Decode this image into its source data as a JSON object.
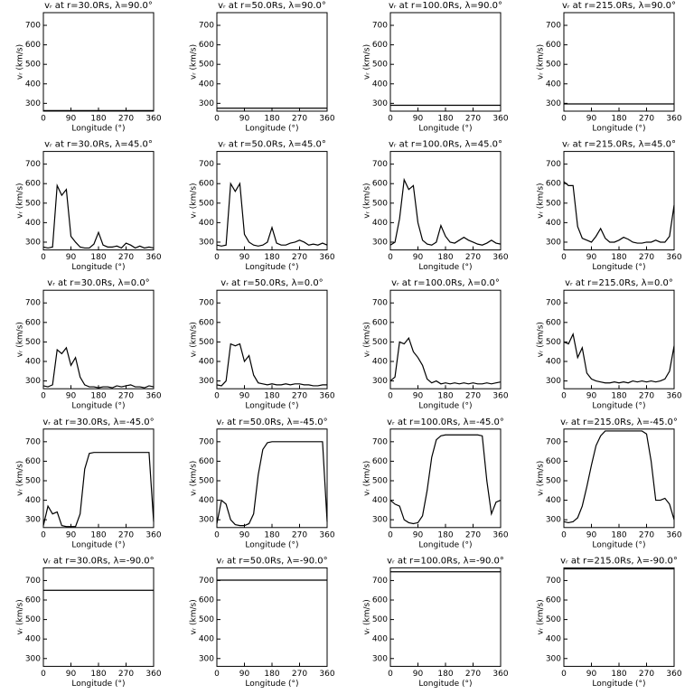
{
  "chart_data": [
    {
      "type": "line",
      "title": "vᵣ at r=30.0Rs, λ=90.0°",
      "xlabel": "Longitude (°)",
      "ylabel": "vᵣ (km/s)",
      "color": "#000000",
      "xlim": [
        0,
        360
      ],
      "ylim": [
        260,
        765
      ],
      "xticks": [
        0,
        90,
        180,
        270,
        360
      ],
      "yticks": [
        300,
        400,
        500,
        600,
        700
      ],
      "x": [
        0,
        360
      ],
      "values": [
        263,
        263
      ]
    },
    {
      "type": "line",
      "title": "vᵣ at r=50.0Rs, λ=90.0°",
      "xlabel": "Longitude (°)",
      "ylabel": "vᵣ (km/s)",
      "color": "#000000",
      "xlim": [
        0,
        360
      ],
      "ylim": [
        260,
        765
      ],
      "xticks": [
        0,
        90,
        180,
        270,
        360
      ],
      "yticks": [
        300,
        400,
        500,
        600,
        700
      ],
      "x": [
        0,
        360
      ],
      "values": [
        275,
        275
      ]
    },
    {
      "type": "line",
      "title": "vᵣ at r=100.0Rs, λ=90.0°",
      "xlabel": "Longitude (°)",
      "ylabel": "vᵣ (km/s)",
      "color": "#000000",
      "xlim": [
        0,
        360
      ],
      "ylim": [
        260,
        765
      ],
      "xticks": [
        0,
        90,
        180,
        270,
        360
      ],
      "yticks": [
        300,
        400,
        500,
        600,
        700
      ],
      "x": [
        0,
        360
      ],
      "values": [
        290,
        290
      ]
    },
    {
      "type": "line",
      "title": "vᵣ at r=215.0Rs, λ=90.0°",
      "xlabel": "Longitude (°)",
      "ylabel": "vᵣ (km/s)",
      "color": "#000000",
      "xlim": [
        0,
        360
      ],
      "ylim": [
        260,
        765
      ],
      "xticks": [
        0,
        90,
        180,
        270,
        360
      ],
      "yticks": [
        300,
        400,
        500,
        600,
        700
      ],
      "x": [
        0,
        360
      ],
      "values": [
        297,
        297
      ]
    },
    {
      "type": "line",
      "title": "vᵣ at r=30.0Rs, λ=45.0°",
      "xlabel": "Longitude (°)",
      "ylabel": "vᵣ (km/s)",
      "color": "#000000",
      "xlim": [
        0,
        360
      ],
      "ylim": [
        260,
        765
      ],
      "xticks": [
        0,
        90,
        180,
        270,
        360
      ],
      "yticks": [
        300,
        400,
        500,
        600,
        700
      ],
      "x": [
        0,
        15,
        30,
        45,
        60,
        75,
        90,
        105,
        120,
        135,
        150,
        165,
        180,
        195,
        210,
        225,
        240,
        255,
        270,
        285,
        300,
        315,
        330,
        345,
        360
      ],
      "values": [
        275,
        270,
        275,
        590,
        540,
        570,
        330,
        300,
        275,
        270,
        270,
        290,
        350,
        285,
        275,
        275,
        280,
        270,
        295,
        285,
        270,
        280,
        270,
        275,
        270
      ]
    },
    {
      "type": "line",
      "title": "vᵣ at r=50.0Rs, λ=45.0°",
      "xlabel": "Longitude (°)",
      "ylabel": "vᵣ (km/s)",
      "color": "#000000",
      "xlim": [
        0,
        360
      ],
      "ylim": [
        260,
        765
      ],
      "xticks": [
        0,
        90,
        180,
        270,
        360
      ],
      "yticks": [
        300,
        400,
        500,
        600,
        700
      ],
      "x": [
        0,
        15,
        30,
        45,
        60,
        75,
        90,
        105,
        120,
        135,
        150,
        165,
        180,
        195,
        210,
        225,
        240,
        255,
        270,
        285,
        300,
        315,
        330,
        345,
        360
      ],
      "values": [
        285,
        280,
        285,
        600,
        560,
        600,
        340,
        300,
        285,
        280,
        285,
        300,
        375,
        295,
        285,
        285,
        295,
        300,
        310,
        300,
        285,
        290,
        285,
        295,
        285
      ]
    },
    {
      "type": "line",
      "title": "vᵣ at r=100.0Rs, λ=45.0°",
      "xlabel": "Longitude (°)",
      "ylabel": "vᵣ (km/s)",
      "color": "#000000",
      "xlim": [
        0,
        360
      ],
      "ylim": [
        260,
        765
      ],
      "xticks": [
        0,
        90,
        180,
        270,
        360
      ],
      "yticks": [
        300,
        400,
        500,
        600,
        700
      ],
      "x": [
        0,
        15,
        30,
        45,
        60,
        75,
        90,
        105,
        120,
        135,
        150,
        165,
        180,
        195,
        210,
        225,
        240,
        255,
        270,
        285,
        300,
        315,
        330,
        345,
        360
      ],
      "values": [
        285,
        300,
        420,
        620,
        570,
        590,
        400,
        310,
        290,
        285,
        300,
        385,
        330,
        300,
        295,
        310,
        325,
        310,
        300,
        290,
        285,
        295,
        310,
        295,
        290
      ]
    },
    {
      "type": "line",
      "title": "vᵣ at r=215.0Rs, λ=45.0°",
      "xlabel": "Longitude (°)",
      "ylabel": "vᵣ (km/s)",
      "color": "#000000",
      "xlim": [
        0,
        360
      ],
      "ylim": [
        260,
        765
      ],
      "xticks": [
        0,
        90,
        180,
        270,
        360
      ],
      "yticks": [
        300,
        400,
        500,
        600,
        700
      ],
      "x": [
        0,
        15,
        30,
        45,
        60,
        75,
        90,
        105,
        120,
        135,
        150,
        165,
        180,
        195,
        210,
        225,
        240,
        255,
        270,
        285,
        300,
        315,
        330,
        345,
        360
      ],
      "values": [
        610,
        590,
        590,
        380,
        320,
        310,
        300,
        330,
        370,
        320,
        300,
        300,
        310,
        325,
        315,
        300,
        295,
        295,
        300,
        300,
        310,
        300,
        300,
        330,
        490
      ]
    },
    {
      "type": "line",
      "title": "vᵣ at r=30.0Rs, λ=0.0°",
      "xlabel": "Longitude (°)",
      "ylabel": "vᵣ (km/s)",
      "color": "#000000",
      "xlim": [
        0,
        360
      ],
      "ylim": [
        260,
        765
      ],
      "xticks": [
        0,
        90,
        180,
        270,
        360
      ],
      "yticks": [
        300,
        400,
        500,
        600,
        700
      ],
      "x": [
        0,
        15,
        30,
        45,
        60,
        75,
        90,
        105,
        120,
        135,
        150,
        165,
        180,
        195,
        210,
        225,
        240,
        255,
        270,
        285,
        300,
        315,
        330,
        345,
        360
      ],
      "values": [
        275,
        270,
        280,
        460,
        440,
        470,
        380,
        420,
        320,
        280,
        270,
        270,
        265,
        270,
        270,
        265,
        275,
        270,
        275,
        280,
        270,
        270,
        265,
        275,
        270
      ]
    },
    {
      "type": "line",
      "title": "vᵣ at r=50.0Rs, λ=0.0°",
      "xlabel": "Longitude (°)",
      "ylabel": "vᵣ (km/s)",
      "color": "#000000",
      "xlim": [
        0,
        360
      ],
      "ylim": [
        260,
        765
      ],
      "xticks": [
        0,
        90,
        180,
        270,
        360
      ],
      "yticks": [
        300,
        400,
        500,
        600,
        700
      ],
      "x": [
        0,
        15,
        30,
        45,
        60,
        75,
        90,
        105,
        120,
        135,
        150,
        165,
        180,
        195,
        210,
        225,
        240,
        255,
        270,
        285,
        300,
        315,
        330,
        345,
        360
      ],
      "values": [
        280,
        275,
        300,
        490,
        480,
        490,
        400,
        430,
        330,
        290,
        285,
        280,
        285,
        280,
        280,
        285,
        280,
        285,
        285,
        280,
        280,
        275,
        275,
        280,
        280
      ]
    },
    {
      "type": "line",
      "title": "vᵣ at r=100.0Rs, λ=0.0°",
      "xlabel": "Longitude (°)",
      "ylabel": "vᵣ (km/s)",
      "color": "#000000",
      "xlim": [
        0,
        360
      ],
      "ylim": [
        260,
        765
      ],
      "xticks": [
        0,
        90,
        180,
        270,
        360
      ],
      "yticks": [
        300,
        400,
        500,
        600,
        700
      ],
      "x": [
        0,
        15,
        30,
        45,
        60,
        75,
        90,
        105,
        120,
        135,
        150,
        165,
        180,
        195,
        210,
        225,
        240,
        255,
        270,
        285,
        300,
        315,
        330,
        345,
        360
      ],
      "values": [
        300,
        320,
        500,
        490,
        520,
        450,
        420,
        380,
        310,
        290,
        300,
        285,
        290,
        285,
        290,
        285,
        290,
        285,
        290,
        285,
        285,
        290,
        285,
        290,
        295
      ]
    },
    {
      "type": "line",
      "title": "vᵣ at r=215.0Rs, λ=0.0°",
      "xlabel": "Longitude (°)",
      "ylabel": "vᵣ (km/s)",
      "color": "#000000",
      "xlim": [
        0,
        360
      ],
      "ylim": [
        260,
        765
      ],
      "xticks": [
        0,
        90,
        180,
        270,
        360
      ],
      "yticks": [
        300,
        400,
        500,
        600,
        700
      ],
      "x": [
        0,
        15,
        30,
        45,
        60,
        75,
        90,
        105,
        120,
        135,
        150,
        165,
        180,
        195,
        210,
        225,
        240,
        255,
        270,
        285,
        300,
        315,
        330,
        345,
        360
      ],
      "values": [
        500,
        490,
        540,
        420,
        470,
        340,
        310,
        300,
        295,
        290,
        290,
        295,
        290,
        295,
        290,
        300,
        295,
        300,
        295,
        300,
        295,
        300,
        310,
        350,
        480
      ]
    },
    {
      "type": "line",
      "title": "vᵣ at r=30.0Rs, λ=-45.0°",
      "xlabel": "Longitude (°)",
      "ylabel": "vᵣ (km/s)",
      "color": "#000000",
      "xlim": [
        0,
        360
      ],
      "ylim": [
        260,
        765
      ],
      "xticks": [
        0,
        90,
        180,
        270,
        360
      ],
      "yticks": [
        300,
        400,
        500,
        600,
        700
      ],
      "x": [
        0,
        15,
        30,
        45,
        60,
        75,
        90,
        105,
        120,
        135,
        150,
        165,
        180,
        195,
        210,
        225,
        240,
        255,
        270,
        285,
        300,
        315,
        330,
        345,
        360
      ],
      "values": [
        270,
        370,
        330,
        340,
        270,
        265,
        265,
        265,
        330,
        560,
        640,
        645,
        645,
        645,
        645,
        645,
        645,
        645,
        645,
        645,
        645,
        645,
        645,
        645,
        290
      ]
    },
    {
      "type": "line",
      "title": "vᵣ at r=50.0Rs, λ=-45.0°",
      "xlabel": "Longitude (°)",
      "ylabel": "vᵣ (km/s)",
      "color": "#000000",
      "xlim": [
        0,
        360
      ],
      "ylim": [
        260,
        765
      ],
      "xticks": [
        0,
        90,
        180,
        270,
        360
      ],
      "yticks": [
        300,
        400,
        500,
        600,
        700
      ],
      "x": [
        0,
        15,
        30,
        45,
        60,
        75,
        90,
        105,
        120,
        135,
        150,
        165,
        180,
        195,
        210,
        225,
        240,
        255,
        270,
        285,
        300,
        315,
        330,
        345,
        360
      ],
      "values": [
        280,
        400,
        380,
        300,
        275,
        270,
        270,
        280,
        330,
        530,
        660,
        695,
        700,
        700,
        700,
        700,
        700,
        700,
        700,
        700,
        700,
        700,
        700,
        700,
        290
      ]
    },
    {
      "type": "line",
      "title": "vᵣ at r=100.0Rs, λ=-45.0°",
      "xlabel": "Longitude (°)",
      "ylabel": "vᵣ (km/s)",
      "color": "#000000",
      "xlim": [
        0,
        360
      ],
      "ylim": [
        260,
        765
      ],
      "xticks": [
        0,
        90,
        180,
        270,
        360
      ],
      "yticks": [
        300,
        400,
        500,
        600,
        700
      ],
      "x": [
        0,
        15,
        30,
        45,
        60,
        75,
        90,
        105,
        120,
        135,
        150,
        165,
        180,
        195,
        210,
        225,
        240,
        255,
        270,
        285,
        300,
        315,
        330,
        345,
        360
      ],
      "values": [
        400,
        380,
        370,
        300,
        285,
        280,
        285,
        320,
        450,
        620,
        710,
        730,
        735,
        735,
        735,
        735,
        735,
        735,
        735,
        735,
        730,
        500,
        330,
        390,
        400
      ]
    },
    {
      "type": "line",
      "title": "vᵣ at r=215.0Rs, λ=-45.0°",
      "xlabel": "Longitude (°)",
      "ylabel": "vᵣ (km/s)",
      "color": "#000000",
      "xlim": [
        0,
        360
      ],
      "ylim": [
        260,
        765
      ],
      "xticks": [
        0,
        90,
        180,
        270,
        360
      ],
      "yticks": [
        300,
        400,
        500,
        600,
        700
      ],
      "x": [
        0,
        15,
        30,
        45,
        60,
        75,
        90,
        105,
        120,
        135,
        150,
        165,
        180,
        195,
        210,
        225,
        240,
        255,
        270,
        285,
        300,
        315,
        330,
        345,
        360
      ],
      "values": [
        290,
        285,
        290,
        310,
        370,
        470,
        580,
        680,
        730,
        755,
        755,
        755,
        755,
        755,
        755,
        755,
        755,
        755,
        740,
        600,
        400,
        400,
        410,
        380,
        300
      ]
    },
    {
      "type": "line",
      "title": "vᵣ at r=30.0Rs, λ=-90.0°",
      "xlabel": "Longitude (°)",
      "ylabel": "vᵣ (km/s)",
      "color": "#000000",
      "xlim": [
        0,
        360
      ],
      "ylim": [
        260,
        765
      ],
      "xticks": [
        0,
        90,
        180,
        270,
        360
      ],
      "yticks": [
        300,
        400,
        500,
        600,
        700
      ],
      "x": [
        0,
        360
      ],
      "values": [
        650,
        650
      ]
    },
    {
      "type": "line",
      "title": "vᵣ at r=50.0Rs, λ=-90.0°",
      "xlabel": "Longitude (°)",
      "ylabel": "vᵣ (km/s)",
      "color": "#000000",
      "xlim": [
        0,
        360
      ],
      "ylim": [
        260,
        765
      ],
      "xticks": [
        0,
        90,
        180,
        270,
        360
      ],
      "yticks": [
        300,
        400,
        500,
        600,
        700
      ],
      "x": [
        0,
        360
      ],
      "values": [
        702,
        702
      ]
    },
    {
      "type": "line",
      "title": "vᵣ at r=100.0Rs, λ=-90.0°",
      "xlabel": "Longitude (°)",
      "ylabel": "vᵣ (km/s)",
      "color": "#000000",
      "xlim": [
        0,
        360
      ],
      "ylim": [
        260,
        765
      ],
      "xticks": [
        0,
        90,
        180,
        270,
        360
      ],
      "yticks": [
        300,
        400,
        500,
        600,
        700
      ],
      "x": [
        0,
        360
      ],
      "values": [
        745,
        745
      ]
    },
    {
      "type": "line",
      "title": "vᵣ at r=215.0Rs, λ=-90.0°",
      "xlabel": "Longitude (°)",
      "ylabel": "vᵣ (km/s)",
      "color": "#000000",
      "xlim": [
        0,
        360
      ],
      "ylim": [
        260,
        765
      ],
      "xticks": [
        0,
        90,
        180,
        270,
        360
      ],
      "yticks": [
        300,
        400,
        500,
        600,
        700
      ],
      "x": [
        0,
        360
      ],
      "values": [
        760,
        760
      ]
    }
  ]
}
